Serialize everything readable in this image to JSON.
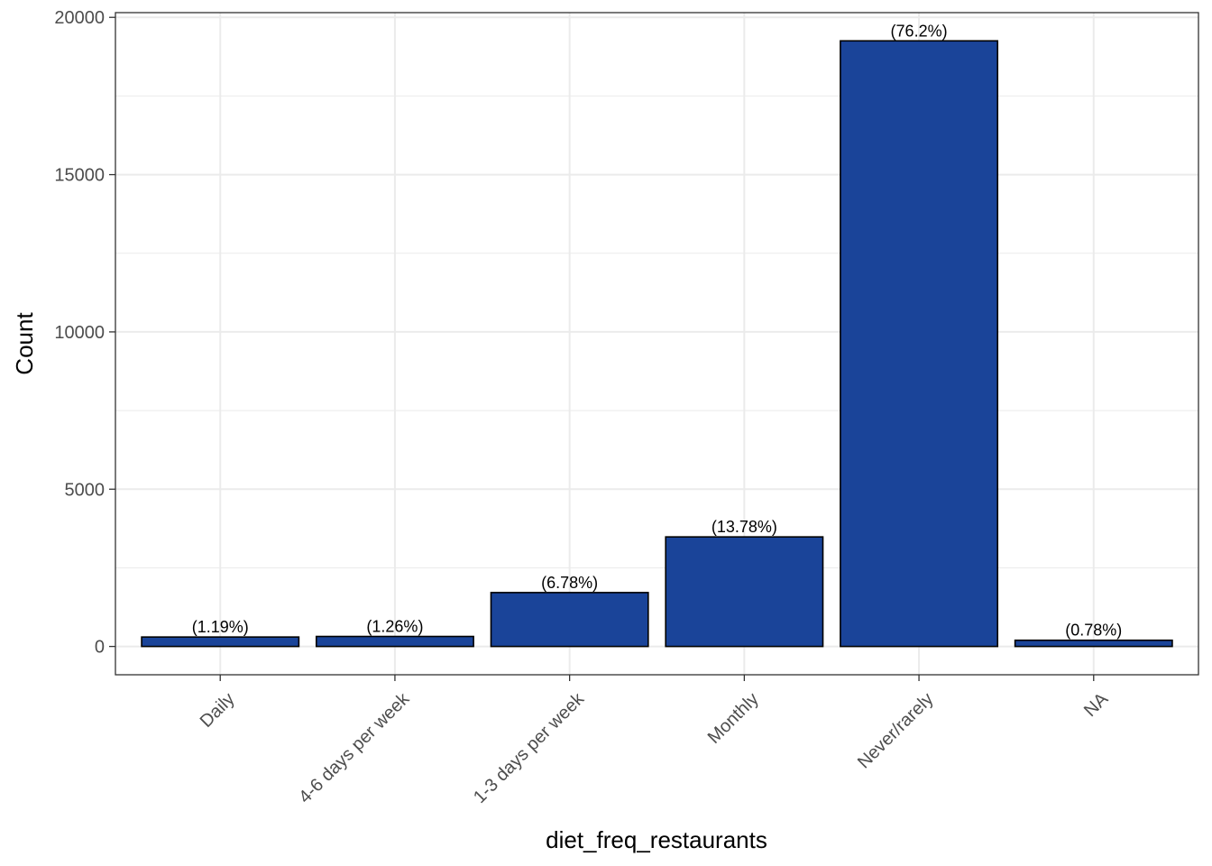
{
  "chart_data": {
    "type": "bar",
    "categories": [
      "Daily",
      "4-6 days per week",
      "1-3 days per week",
      "Monthly",
      "Never/rarely",
      "NA"
    ],
    "values": [
      300,
      318,
      1713,
      3483,
      19253,
      197
    ],
    "data_labels": [
      "(1.19%)",
      "(1.26%)",
      "(6.78%)",
      "(13.78%)",
      "(76.2%)",
      "(0.78%)"
    ],
    "title": "",
    "xlabel": "diet_freq_restaurants",
    "ylabel": "Count",
    "ylim": [
      -900,
      20150
    ],
    "yticks": [
      0,
      5000,
      10000,
      15000,
      20000
    ],
    "ytick_labels": [
      "0",
      "5000",
      "10000",
      "15000",
      "20000"
    ],
    "grid": true,
    "legend": "none",
    "bar_color": "#1a4499",
    "bar_edge_color": "#000000",
    "grid_color": "#ebebeb"
  }
}
